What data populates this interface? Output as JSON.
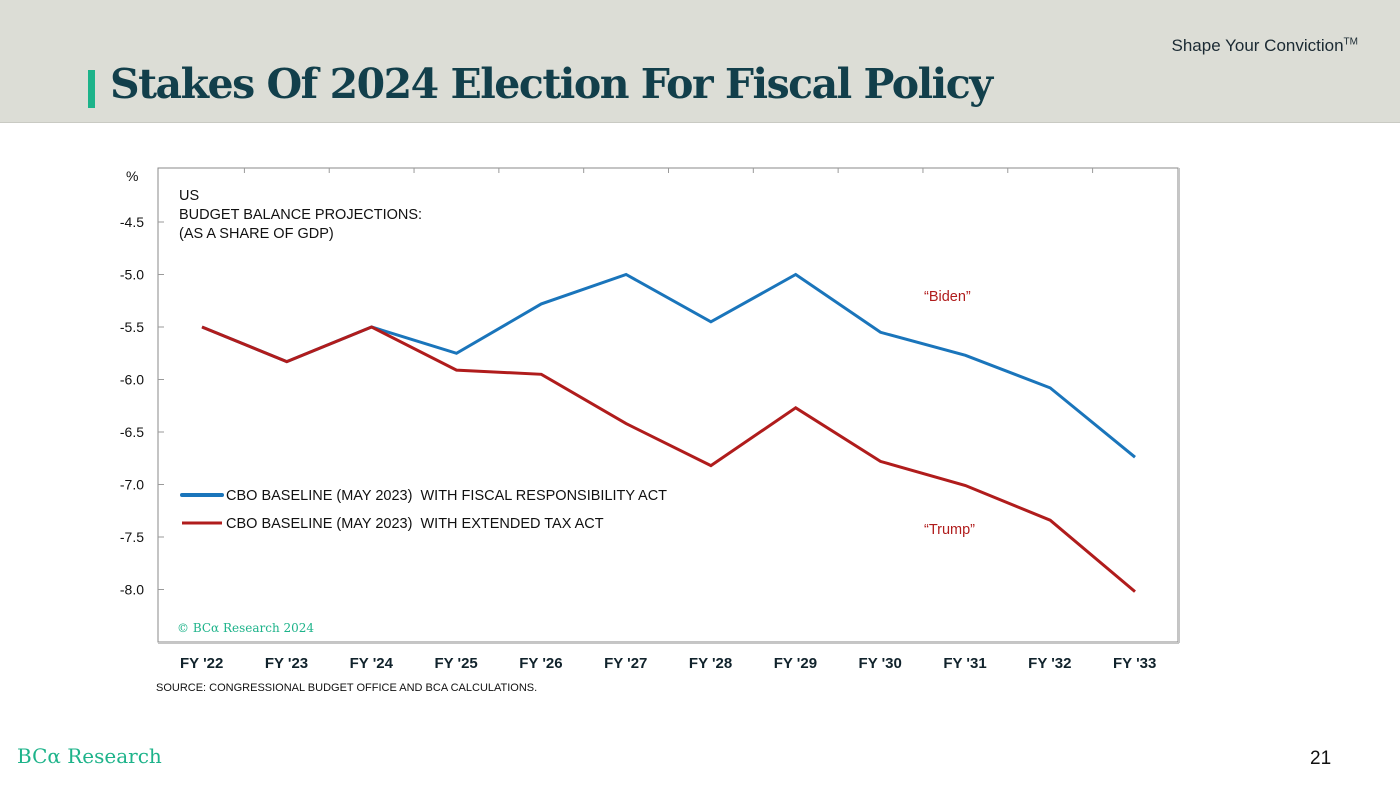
{
  "header": {
    "title": "Stakes Of 2024 Election For Fiscal Policy",
    "tagline": "Shape Your Conviction",
    "tagline_mark": "TM",
    "accent_color": "#1db38a",
    "title_color": "#123f4b"
  },
  "footer": {
    "logo": "BCα Research",
    "page_number": "21",
    "source": "SOURCE: CONGRESSIONAL BUDGET OFFICE AND BCA CALCULATIONS."
  },
  "chart_data": {
    "type": "line",
    "title": [
      "US",
      "BUDGET BALANCE PROJECTIONS:",
      "(AS A SHARE OF GDP)"
    ],
    "ylabel": "%",
    "xlabel": "",
    "categories": [
      "FY '22",
      "FY '23",
      "FY '24",
      "FY '25",
      "FY '26",
      "FY '27",
      "FY '28",
      "FY '29",
      "FY '30",
      "FY '31",
      "FY '32",
      "FY '33"
    ],
    "yticks": [
      -4.5,
      -5.0,
      -5.5,
      -6.0,
      -6.5,
      -7.0,
      -7.5,
      -8.0
    ],
    "ytick_labels": [
      "-4.5",
      "-5.0",
      "-5.5",
      "-6.0",
      "-6.5",
      "-7.0",
      "-7.5",
      "-8.0"
    ],
    "ylim": [
      -8.5,
      -4.05
    ],
    "grid": false,
    "legend_position": "center-left",
    "series": [
      {
        "name": "CBO BASELINE (MAY 2023)  WITH FISCAL RESPONSIBILITY ACT",
        "color": "#1a75bb",
        "values": [
          -5.5,
          -5.83,
          -5.5,
          -5.75,
          -5.28,
          -5.0,
          -5.45,
          -5.0,
          -5.55,
          -5.77,
          -6.08,
          -6.74
        ]
      },
      {
        "name": "CBO BASELINE (MAY 2023)  WITH EXTENDED TAX ACT",
        "color": "#b01c1c",
        "values": [
          -5.5,
          -5.83,
          -5.5,
          -5.91,
          -5.95,
          -6.42,
          -6.82,
          -6.27,
          -6.78,
          -7.01,
          -7.34,
          -8.02
        ]
      }
    ],
    "annotations": [
      {
        "text": "“Biden”",
        "series": 0
      },
      {
        "text": "“Trump”",
        "series": 1
      }
    ],
    "copyright": "© BCα Research 2024"
  }
}
